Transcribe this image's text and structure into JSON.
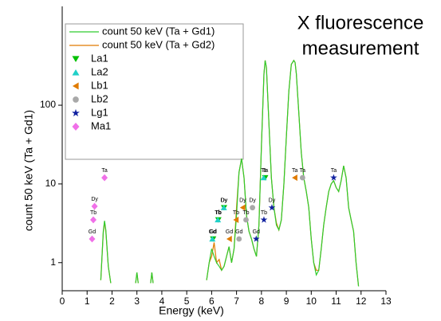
{
  "chart_data": {
    "type": "line",
    "title": [
      "X fluorescence",
      "measurement"
    ],
    "title_color": "#7030a0",
    "xlabel": "Energy (keV)",
    "ylabel": "count 50 keV (Ta + Gd1)",
    "xlim": [
      0,
      13
    ],
    "xticks": [
      0,
      1,
      2,
      3,
      4,
      5,
      6,
      7,
      8,
      9,
      10,
      11,
      12,
      13
    ],
    "ylim": [
      0.44,
      1800
    ],
    "yticks": [
      1,
      10,
      100
    ],
    "log_y": true,
    "legend": "upper left",
    "x": [
      1.55,
      1.65,
      1.7,
      1.75,
      1.85,
      1.95,
      2.4,
      2.95,
      3.0,
      3.05,
      3.3,
      3.55,
      3.6,
      3.65,
      4.5,
      5.8,
      5.9,
      6.0,
      6.1,
      6.2,
      6.3,
      6.4,
      6.5,
      6.6,
      6.7,
      6.8,
      6.9,
      7.0,
      7.1,
      7.2,
      7.3,
      7.4,
      7.5,
      7.6,
      7.7,
      7.8,
      7.9,
      8.0,
      8.1,
      8.15,
      8.2,
      8.3,
      8.4,
      8.5,
      8.6,
      8.7,
      8.8,
      8.9,
      9.0,
      9.1,
      9.2,
      9.3,
      9.35,
      9.4,
      9.5,
      9.6,
      9.7,
      9.8,
      9.9,
      10.0,
      10.1,
      10.2,
      10.3,
      10.4,
      10.5,
      10.6,
      10.7,
      10.8,
      10.9,
      11.0,
      11.1,
      11.2,
      11.3,
      11.4,
      11.5,
      11.6,
      11.7,
      11.8,
      11.9
    ],
    "series": [
      {
        "name": "count 50 keV (Ta + Gd2)",
        "type": "line",
        "color": "#e07b00",
        "values": [
          0.6,
          2.4,
          3.3,
          2.5,
          0.9,
          0.55,
          null,
          0.55,
          0.75,
          0.55,
          null,
          0.55,
          0.75,
          0.55,
          null,
          0.6,
          1.0,
          1.2,
          1.8,
          1.0,
          1.1,
          0.8,
          0.9,
          1.2,
          1.6,
          1.0,
          1.5,
          5,
          14,
          21,
          12,
          4,
          2.5,
          2.0,
          1.5,
          1.2,
          3,
          30,
          250,
          370,
          300,
          60,
          12,
          5,
          3.2,
          2.6,
          3.5,
          10,
          40,
          150,
          330,
          370,
          350,
          250,
          80,
          25,
          12,
          8,
          5,
          2,
          1,
          0.8,
          0.8,
          1.5,
          3,
          5,
          8,
          10,
          11,
          9,
          8,
          11,
          17,
          12,
          5,
          3.5,
          2.5,
          1.0,
          0.5
        ]
      },
      {
        "name": "count 50 keV (Ta + Gd1)",
        "type": "line",
        "color": "#2ecc2e",
        "values": [
          0.6,
          2.5,
          3.4,
          2.6,
          0.9,
          0.55,
          null,
          0.55,
          0.75,
          0.55,
          null,
          0.55,
          0.75,
          0.55,
          null,
          0.6,
          1.0,
          1.5,
          1.2,
          1.0,
          0.9,
          0.8,
          0.9,
          1.2,
          1.6,
          1.0,
          1.5,
          4,
          14,
          21,
          12,
          4,
          2.5,
          2.0,
          1.5,
          1.2,
          3,
          30,
          250,
          370,
          300,
          60,
          12,
          5,
          3,
          2.6,
          3.5,
          10,
          40,
          150,
          330,
          370,
          350,
          250,
          80,
          25,
          12,
          8,
          5,
          2,
          1,
          0.7,
          0.8,
          1.5,
          3,
          5,
          8,
          10,
          11,
          9,
          8,
          11,
          17,
          12,
          5,
          3.5,
          2.5,
          1.0,
          0.5
        ]
      },
      {
        "name": "La1",
        "type": "scatter",
        "marker": "triangle-down",
        "color": "#00c000",
        "x": [
          6.06,
          6.27,
          6.5,
          8.15
        ],
        "values": [
          2.0,
          3.5,
          5.0,
          12
        ],
        "labels": [
          "Gd",
          "Tb",
          "Dy",
          "Ta"
        ]
      },
      {
        "name": "La2",
        "type": "scatter",
        "marker": "triangle-up",
        "color": "#20d0c8",
        "x": [
          6.03,
          6.25,
          6.49,
          8.09
        ],
        "values": [
          2.0,
          3.5,
          5.0,
          12
        ],
        "labels": [
          "Gd",
          "Tb",
          "Dy",
          "Ta"
        ]
      },
      {
        "name": "Lb1",
        "type": "scatter",
        "marker": "triangle-left",
        "color": "#e07b00",
        "x": [
          6.71,
          6.98,
          7.25,
          9.34
        ],
        "values": [
          2.0,
          3.5,
          5.0,
          12
        ],
        "labels": [
          "Gd",
          "Tb",
          "Dy",
          "Ta"
        ]
      },
      {
        "name": "Lb2",
        "type": "scatter",
        "marker": "circle",
        "color": "#a8a8a8",
        "x": [
          7.1,
          7.38,
          7.64,
          9.65
        ],
        "values": [
          2.0,
          3.5,
          5.0,
          12
        ],
        "labels": [
          "Gd",
          "Tb",
          "Dy",
          "Ta"
        ]
      },
      {
        "name": "Lg1",
        "type": "scatter",
        "marker": "star",
        "color": "#1020a0",
        "x": [
          7.79,
          8.1,
          8.42,
          10.9
        ],
        "values": [
          2.0,
          3.5,
          5.0,
          12
        ],
        "labels": [
          "Gd",
          "Tb",
          "Dy",
          "Ta"
        ]
      },
      {
        "name": "Ma1",
        "type": "scatter",
        "marker": "diamond",
        "color": "#f070e8",
        "x": [
          1.2,
          1.25,
          1.3,
          1.7
        ],
        "values": [
          2.0,
          3.5,
          5.2,
          12
        ],
        "labels": [
          "Gd",
          "Tb",
          "Dy",
          "Ta"
        ]
      }
    ]
  }
}
